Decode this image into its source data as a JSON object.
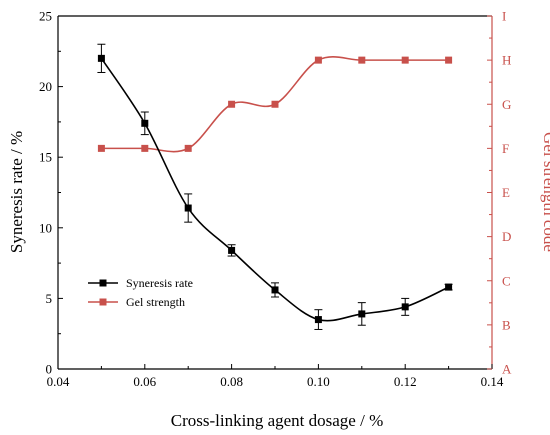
{
  "chart_data": {
    "type": "line",
    "xlabel": "Cross-linking agent dosage / %",
    "ylabel": "Syneresis rate / %",
    "y2label": "Gel strength code",
    "xlim": [
      0.04,
      0.14
    ],
    "ylim": [
      0,
      25
    ],
    "x_ticks": [
      "0.04",
      "0.06",
      "0.08",
      "0.10",
      "0.12",
      "0.14"
    ],
    "y_ticks": [
      "0",
      "5",
      "10",
      "15",
      "20",
      "25"
    ],
    "y2_ticks": [
      "A",
      "B",
      "C",
      "D",
      "E",
      "F",
      "G",
      "H",
      "I"
    ],
    "legend_position": "center-left",
    "grid": false,
    "series": [
      {
        "name": "Syneresis rate",
        "axis": "left",
        "color": "#000000",
        "marker": "square",
        "x": [
          0.05,
          0.06,
          0.07,
          0.08,
          0.09,
          0.1,
          0.11,
          0.12,
          0.13
        ],
        "y": [
          22.0,
          17.4,
          11.4,
          8.4,
          5.6,
          3.5,
          3.9,
          4.4,
          5.8
        ],
        "error": [
          1.0,
          0.8,
          1.0,
          0.4,
          0.5,
          0.7,
          0.8,
          0.6,
          0.2
        ]
      },
      {
        "name": "Gel strength",
        "axis": "right",
        "color": "#c8504b",
        "marker": "square",
        "x": [
          0.05,
          0.06,
          0.07,
          0.08,
          0.09,
          0.1,
          0.11,
          0.12,
          0.13
        ],
        "y": [
          "F",
          "F",
          "F",
          "G",
          "G",
          "H",
          "H",
          "H",
          "H"
        ]
      }
    ]
  }
}
